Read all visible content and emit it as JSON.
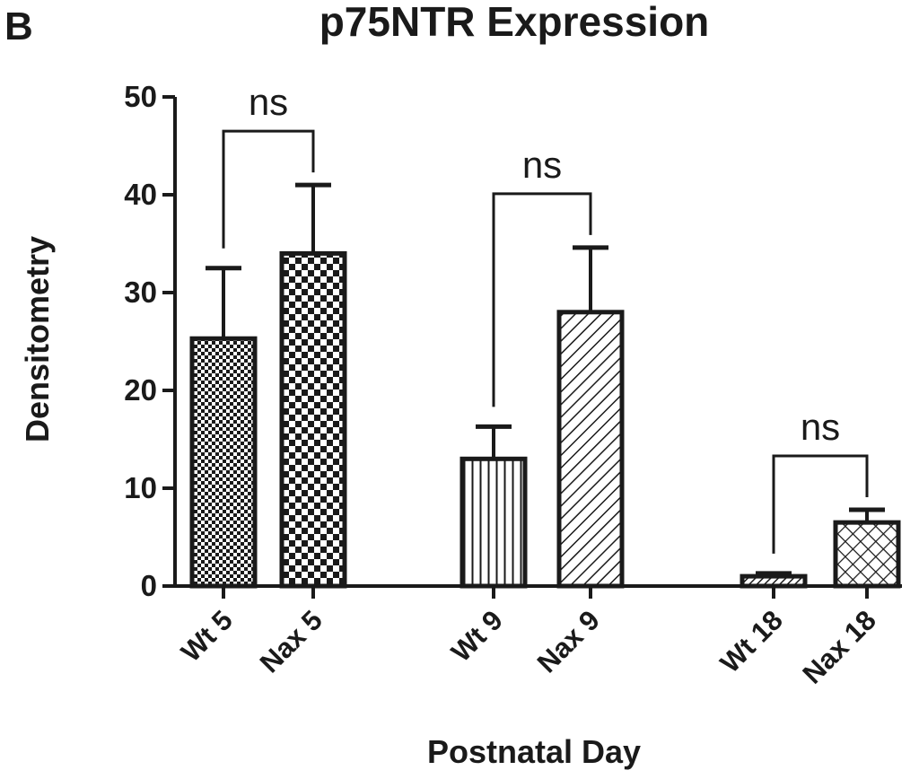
{
  "panel_label": "B",
  "chart_data": {
    "type": "bar",
    "title": "p75NTR Expression",
    "xlabel": "Postnatal Day",
    "ylabel": "Densitometry",
    "ylim": [
      0,
      50
    ],
    "yticks": [
      "0",
      "10",
      "20",
      "30",
      "40",
      "50"
    ],
    "categories": [
      "Wt 5",
      "Nax 5",
      "Wt 9",
      "Nax 9",
      "Wt 18",
      "Nax 18"
    ],
    "values": [
      25.3,
      34.0,
      13.0,
      28.0,
      1.0,
      6.5
    ],
    "errors": [
      7.2,
      7.0,
      3.3,
      6.6,
      0.3,
      1.3
    ],
    "patterns": [
      "fine-check",
      "coarse-check",
      "vertical-lines",
      "diagonal-lines",
      "dense-hatch",
      "crosshatch"
    ],
    "comparisons": [
      {
        "a": 0,
        "b": 1,
        "label": "ns"
      },
      {
        "a": 2,
        "b": 3,
        "label": "ns"
      },
      {
        "a": 4,
        "b": 5,
        "label": "ns"
      }
    ]
  }
}
